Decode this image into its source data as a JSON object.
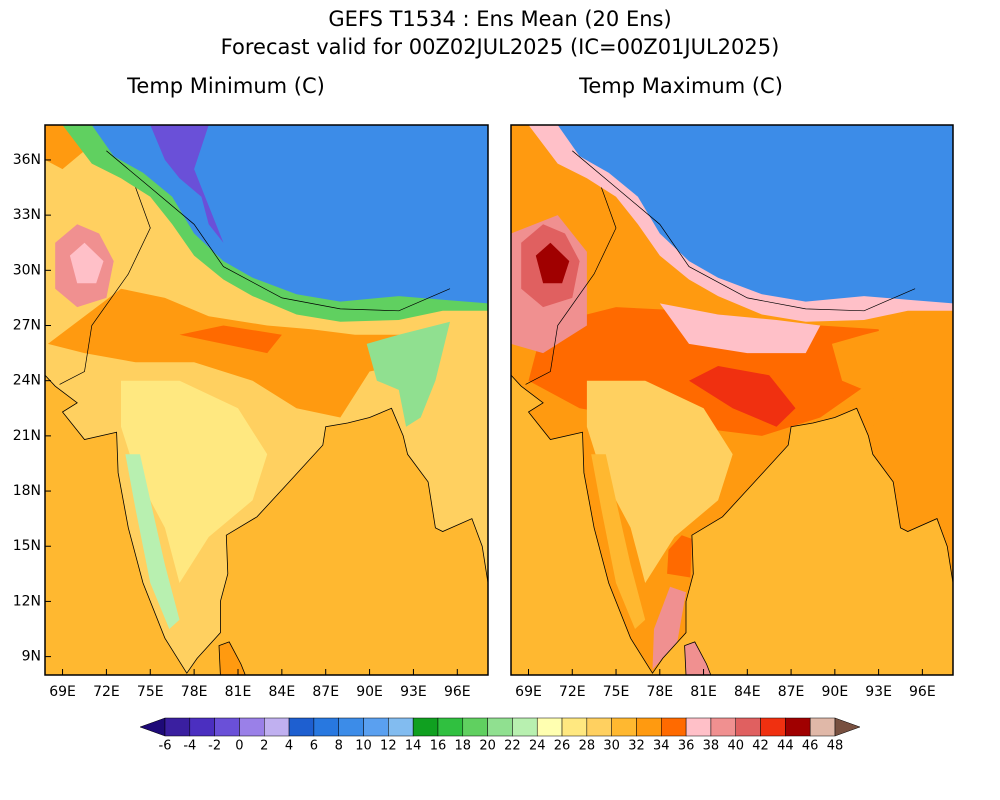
{
  "title": "GEFS T1534 : Ens Mean (20 Ens)",
  "subtitle": "Forecast valid for 00Z02JUL2025 (IC=00Z01JUL2025)",
  "maps": [
    {
      "title": "Temp Minimum (C)"
    },
    {
      "title": "Temp Maximum (C)"
    }
  ],
  "lon_range": [
    67.8,
    98.1
  ],
  "lat_range": [
    8,
    37.9
  ],
  "lat_ticks": [
    {
      "value": 36,
      "label": "36N"
    },
    {
      "value": 33,
      "label": "33N"
    },
    {
      "value": 30,
      "label": "30N"
    },
    {
      "value": 27,
      "label": "27N"
    },
    {
      "value": 24,
      "label": "24N"
    },
    {
      "value": 21,
      "label": "21N"
    },
    {
      "value": 18,
      "label": "18N"
    },
    {
      "value": 15,
      "label": "15N"
    },
    {
      "value": 12,
      "label": "12N"
    },
    {
      "value": 9,
      "label": "9N"
    }
  ],
  "lon_ticks": [
    {
      "value": 69,
      "label": "69E"
    },
    {
      "value": 72,
      "label": "72E"
    },
    {
      "value": 75,
      "label": "75E"
    },
    {
      "value": 78,
      "label": "78E"
    },
    {
      "value": 81,
      "label": "81E"
    },
    {
      "value": 84,
      "label": "84E"
    },
    {
      "value": 87,
      "label": "87E"
    },
    {
      "value": 90,
      "label": "90E"
    },
    {
      "value": 93,
      "label": "93E"
    },
    {
      "value": 96,
      "label": "96E"
    }
  ],
  "colorbar": {
    "levels": [
      -6,
      -4,
      -2,
      0,
      2,
      4,
      6,
      8,
      10,
      12,
      14,
      16,
      18,
      20,
      22,
      24,
      26,
      28,
      30,
      32,
      34,
      36,
      38,
      40,
      42,
      44,
      46,
      48
    ],
    "colors": [
      "#1e0a78",
      "#3a1fa0",
      "#4b2fc0",
      "#6a50d8",
      "#9a80e8",
      "#c0b0f0",
      "#1e5fd0",
      "#2878e0",
      "#3c8ce8",
      "#5aa0f0",
      "#82bcf0",
      "#10a020",
      "#30c040",
      "#60d060",
      "#90e090",
      "#b8f0b0",
      "#ffffb0",
      "#ffe880",
      "#ffd060",
      "#ffb830",
      "#ff9a10",
      "#ff6a00",
      "#ffc0c8",
      "#f09090",
      "#e06060",
      "#f03010",
      "#a00000",
      "#e0b8a8",
      "#b08070",
      "#785040"
    ]
  }
}
